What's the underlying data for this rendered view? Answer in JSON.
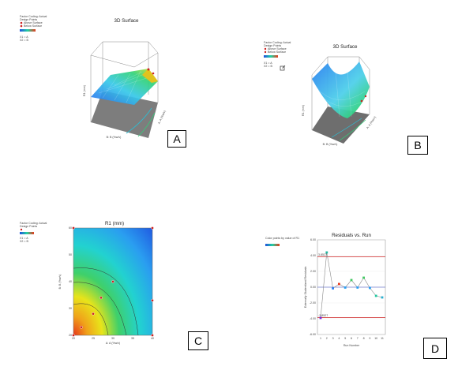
{
  "labels": {
    "a": "A",
    "b": "B",
    "c": "C",
    "d": "D"
  },
  "panel_a": {
    "legend_lines": [
      "Factor Coding: Actual",
      "Design Points",
      "Above Surface",
      "Below Surface"
    ],
    "legend_x": [
      "X1 = A",
      "X2 = B"
    ],
    "title": "3D Surface",
    "xlabel": "A: A (%w/v)",
    "ylabel": "B: B (%w/v)",
    "zlabel": "R1 (mm)"
  },
  "panel_b": {
    "legend_lines": [
      "Factor Coding: Actual",
      "Design Points",
      "Above Surface",
      "Below Surface"
    ],
    "legend_x": [
      "X1 = A",
      "X2 = B"
    ],
    "title": "3D Surface",
    "xlabel": "A: A (%w/v)",
    "ylabel": "B: B (%w/v)",
    "zlabel": "R1 (mm)"
  },
  "panel_c": {
    "legend_lines": [
      "Factor Coding: Actual",
      "Design Points"
    ],
    "legend_x": [
      "X1 = A",
      "X2 = B"
    ],
    "title": "R1 (mm)",
    "xlabel": "A: A (%w/v)",
    "ylabel": "B: B (%w/v)"
  },
  "panel_d": {
    "legend_lines": [
      "Color points by value of R1"
    ],
    "title": "Residuals vs. Run",
    "xlabel": "Run Number",
    "ylabel": "Externally Studentized Residuals",
    "limit_upper_label": "3.8527",
    "limit_lower_label": "-3.8527"
  },
  "colors": {
    "low": "#1f4fe0",
    "mid": "#22d2a0",
    "high": "#e8c11a",
    "top": "#e83a1a",
    "limit": "#cc2222",
    "zero": "#3344bb"
  },
  "chart_data": [
    {
      "type": "surface",
      "title": "3D Surface",
      "xlabel": "A: A (%w/v)",
      "ylabel": "B: B (%w/v)",
      "zlabel": "R1 (mm)"
    },
    {
      "type": "surface",
      "title": "3D Surface",
      "xlabel": "A: A (%w/v)",
      "ylabel": "B: B (%w/v)",
      "zlabel": "R1 (mm)"
    },
    {
      "type": "contour",
      "title": "R1 (mm)",
      "xlabel": "A: A (%w/v)",
      "ylabel": "B: B (%w/v)",
      "xticks": [
        "20",
        "25",
        "30",
        "35",
        "40"
      ],
      "yticks": [
        "20",
        "30",
        "40",
        "50",
        "60"
      ],
      "xlim": [
        20,
        40
      ],
      "ylim": [
        20,
        60
      ],
      "points": [
        {
          "x": 20,
          "y": 60,
          "color": "#cc2222"
        },
        {
          "x": 40,
          "y": 60,
          "color": "#cc2222"
        },
        {
          "x": 30,
          "y": 40,
          "color": "#cc2222"
        },
        {
          "x": 27,
          "y": 34,
          "color": "#cc2222"
        },
        {
          "x": 25,
          "y": 28,
          "color": "#cc2222"
        },
        {
          "x": 40,
          "y": 33,
          "color": "#cc2222"
        },
        {
          "x": 22,
          "y": 23,
          "color": "#cc2222"
        },
        {
          "x": 20,
          "y": 20,
          "color": "#cc2222"
        },
        {
          "x": 40,
          "y": 20,
          "color": "#cc2222"
        }
      ]
    },
    {
      "type": "line",
      "title": "Residuals vs. Run",
      "xlabel": "Run Number",
      "ylabel": "Externally Studentized Residuals",
      "x": [
        1,
        2,
        3,
        4,
        5,
        6,
        7,
        8,
        9,
        10,
        11
      ],
      "y": [
        -3.9,
        4.4,
        -0.15,
        0.4,
        -0.05,
        0.9,
        -0.05,
        1.2,
        -0.1,
        -1.1,
        -1.3
      ],
      "xticks": [
        "1",
        "2",
        "3",
        "4",
        "5",
        "6",
        "7",
        "8",
        "9",
        "10",
        "11"
      ],
      "yticks": [
        "-6.00",
        "-4.00",
        "-2.00",
        "0.00",
        "2.00",
        "4.00",
        "6.00"
      ],
      "ylim": [
        -6,
        6
      ],
      "limits": [
        3.8527,
        -3.8527
      ]
    }
  ]
}
